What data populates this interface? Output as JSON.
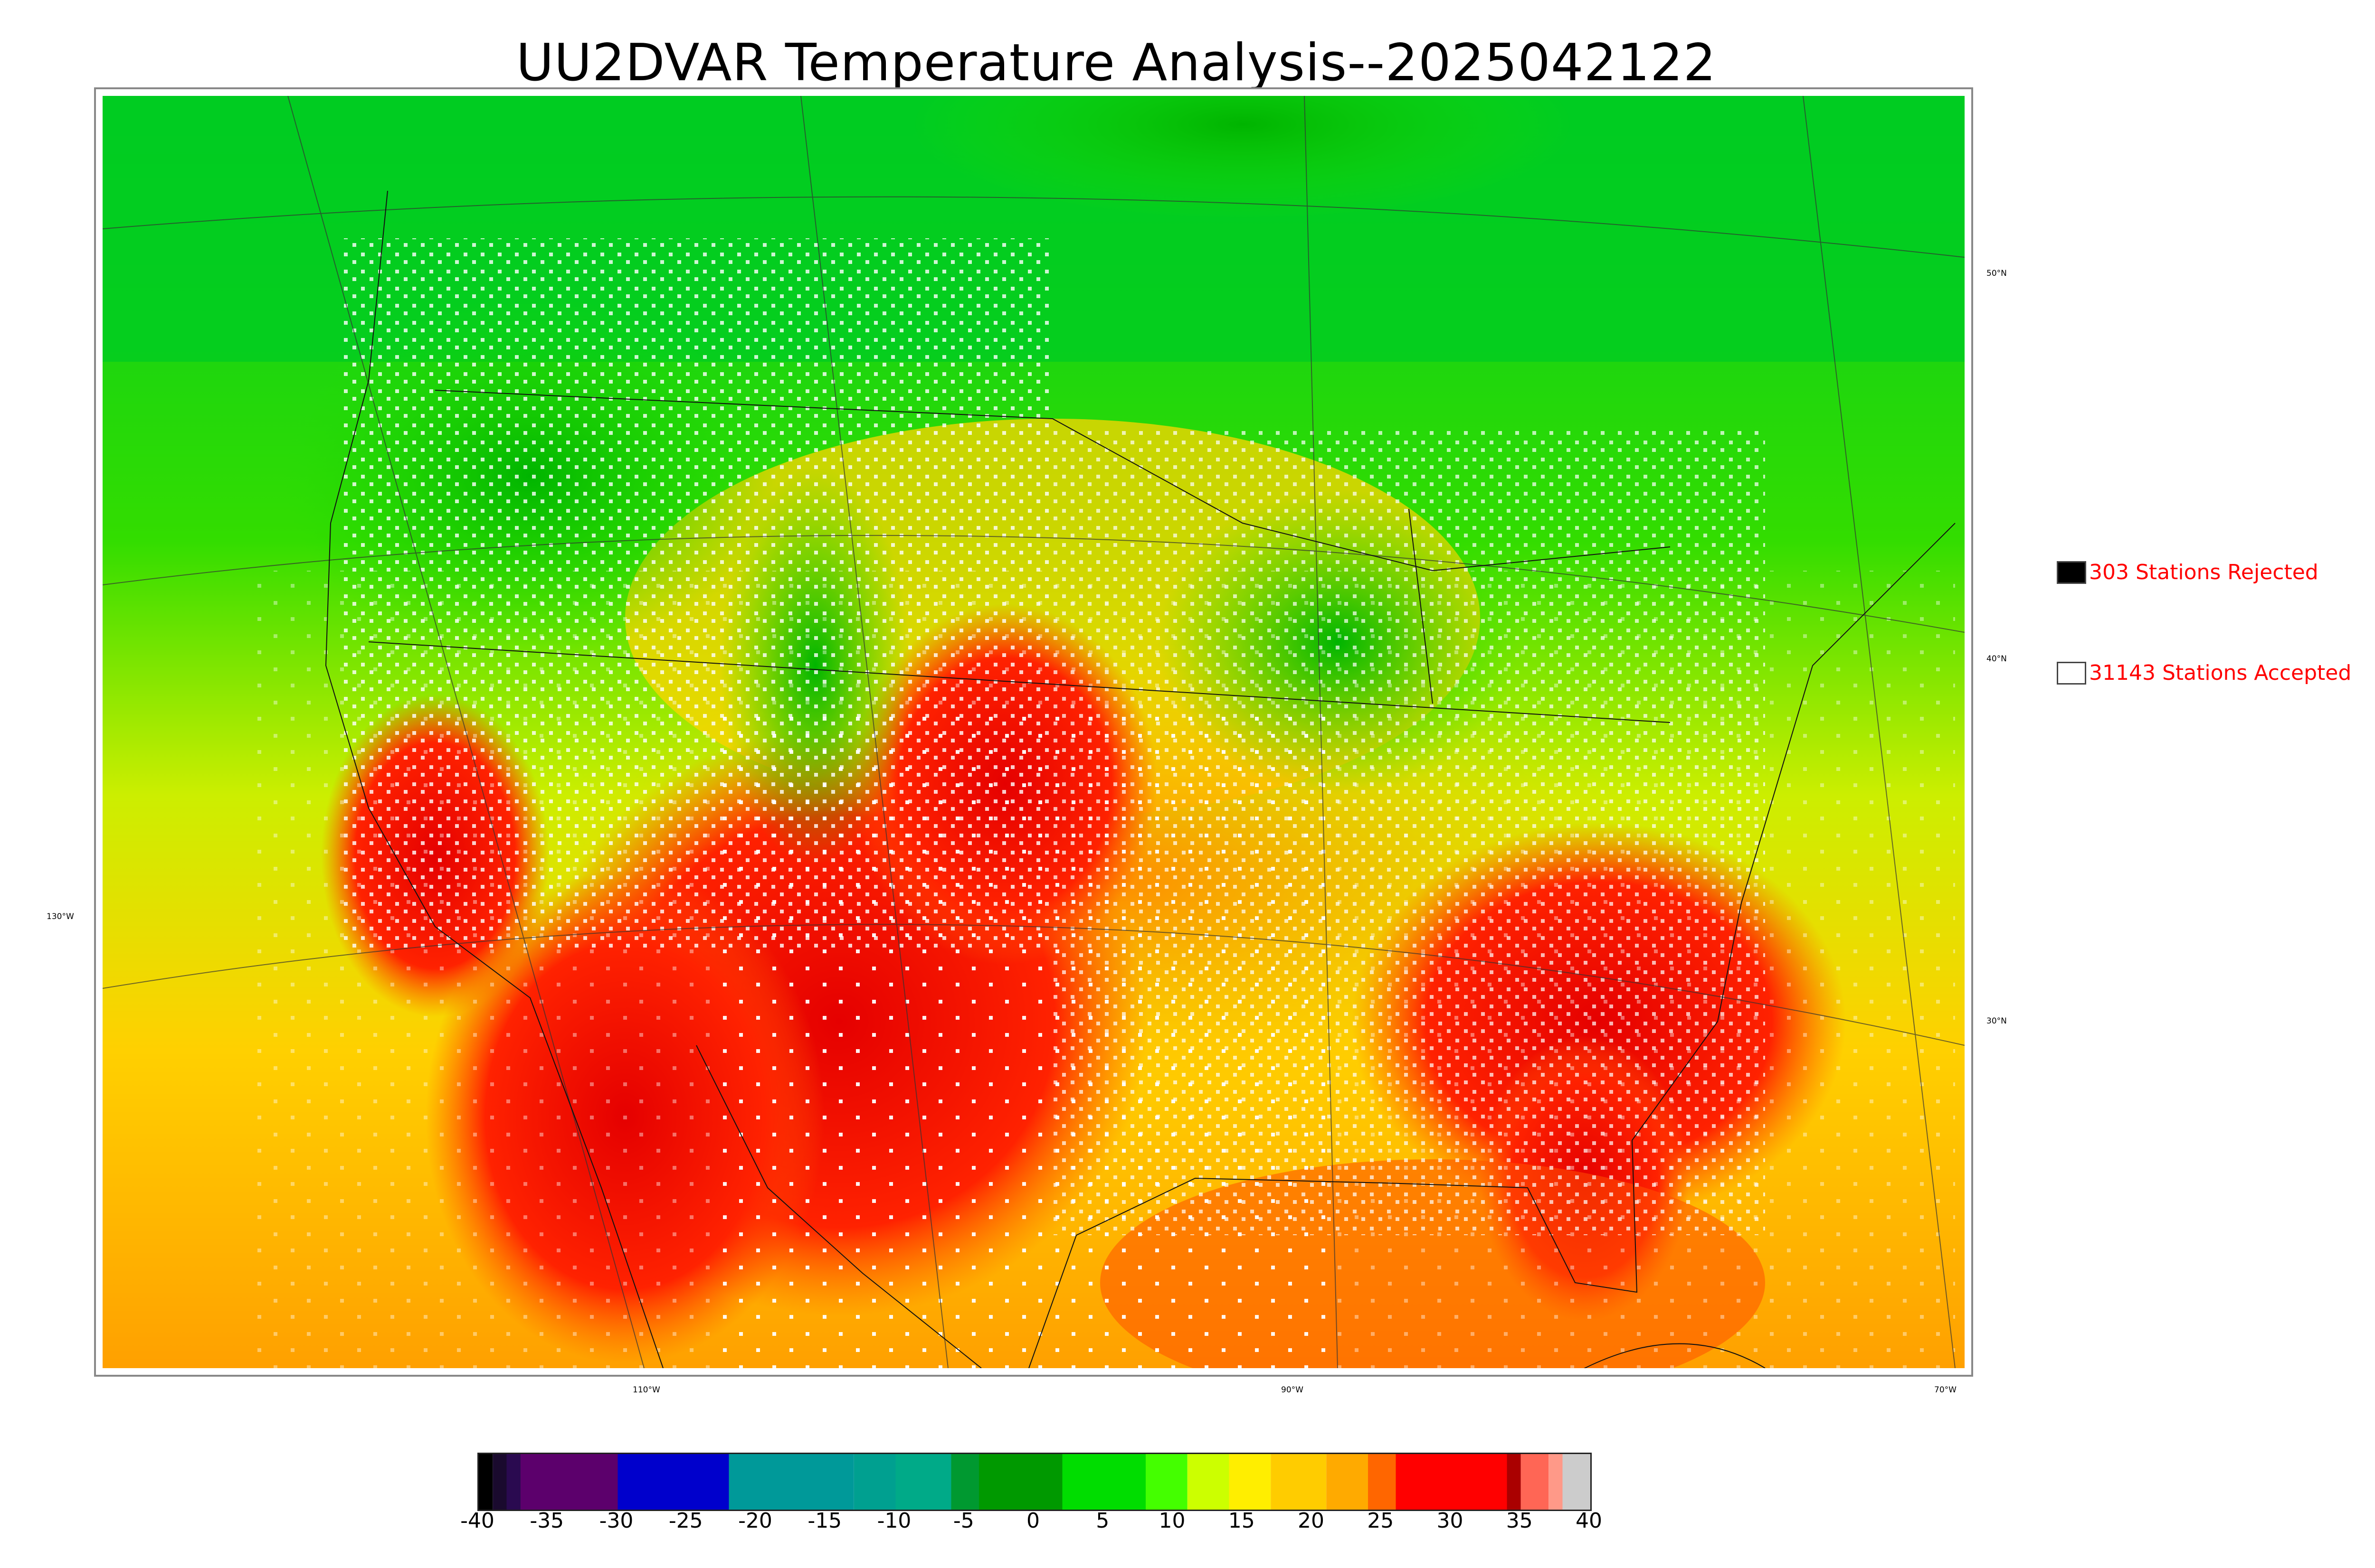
{
  "title": "UU2DVAR Temperature Analysis--2025042122",
  "legend": {
    "rejected": {
      "label": "303 Stations Rejected",
      "color": "#000000"
    },
    "accepted": {
      "label": "31143 Stations Accepted",
      "color": "#ffffff"
    }
  },
  "longitude_labels": [
    "130°W",
    "110°W",
    "90°W",
    "70°W"
  ],
  "latitude_labels": [
    "50°N",
    "40°N",
    "30°N"
  ],
  "colorbar": {
    "ticks": [
      "-40",
      "-35",
      "-30",
      "-25",
      "-20",
      "-15",
      "-10",
      "-5",
      "0",
      "5",
      "10",
      "15",
      "20",
      "25",
      "30",
      "35",
      "40"
    ],
    "range": [
      -40,
      40
    ]
  },
  "colors": {
    "cold": "#00cc00",
    "mild": "#ffd000",
    "warm": "#ff3300",
    "hot": "#e60000",
    "ocean_south": "#ffa000"
  }
}
